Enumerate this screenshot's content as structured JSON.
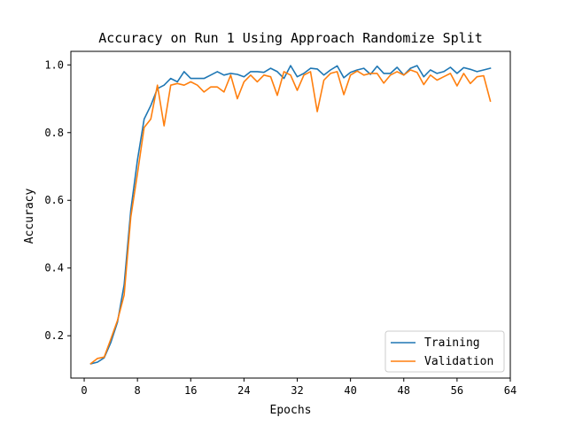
{
  "chart_data": {
    "type": "line",
    "title": "Accuracy on Run 1 Using Approach Randomize Split",
    "xlabel": "Epochs",
    "ylabel": "Accuracy",
    "xlim": [
      -2,
      64
    ],
    "ylim": [
      0.075,
      1.04
    ],
    "xticks": [
      0,
      8,
      16,
      24,
      32,
      40,
      48,
      56,
      64
    ],
    "yticks": [
      0.2,
      0.4,
      0.6,
      0.8,
      1.0
    ],
    "xtick_labels": [
      "0",
      "8",
      "16",
      "24",
      "32",
      "40",
      "48",
      "56",
      "64"
    ],
    "ytick_labels": [
      "0.2",
      "0.4",
      "0.6",
      "0.8",
      "1.0"
    ],
    "grid": false,
    "legend_position": "lower-right",
    "x": [
      1,
      2,
      3,
      4,
      5,
      6,
      7,
      8,
      9,
      10,
      11,
      12,
      13,
      14,
      15,
      16,
      17,
      18,
      19,
      20,
      21,
      22,
      23,
      24,
      25,
      26,
      27,
      28,
      29,
      30,
      31,
      32,
      33,
      34,
      35,
      36,
      37,
      38,
      39,
      40,
      41,
      42,
      43,
      44,
      45,
      46,
      47,
      48,
      49,
      50,
      51,
      52,
      53,
      54,
      55,
      56,
      57,
      58,
      59,
      60,
      61
    ],
    "series": [
      {
        "name": "Training",
        "color": "#1f77b4",
        "values": [
          0.117,
          0.122,
          0.135,
          0.18,
          0.24,
          0.35,
          0.57,
          0.72,
          0.84,
          0.88,
          0.93,
          0.94,
          0.96,
          0.95,
          0.98,
          0.96,
          0.96,
          0.96,
          0.97,
          0.98,
          0.97,
          0.975,
          0.972,
          0.965,
          0.98,
          0.98,
          0.978,
          0.99,
          0.98,
          0.96,
          0.998,
          0.965,
          0.975,
          0.99,
          0.988,
          0.97,
          0.985,
          0.997,
          0.962,
          0.978,
          0.985,
          0.99,
          0.972,
          0.996,
          0.975,
          0.975,
          0.993,
          0.97,
          0.99,
          0.998,
          0.965,
          0.985,
          0.975,
          0.98,
          0.993,
          0.975,
          0.992,
          0.987,
          0.98,
          0.985,
          0.99
        ]
      },
      {
        "name": "Validation",
        "color": "#ff7f0e",
        "values": [
          0.118,
          0.133,
          0.137,
          0.19,
          0.245,
          0.32,
          0.55,
          0.68,
          0.815,
          0.84,
          0.94,
          0.82,
          0.94,
          0.945,
          0.94,
          0.95,
          0.94,
          0.92,
          0.935,
          0.935,
          0.92,
          0.97,
          0.9,
          0.95,
          0.97,
          0.95,
          0.97,
          0.965,
          0.91,
          0.98,
          0.97,
          0.925,
          0.97,
          0.98,
          0.862,
          0.955,
          0.975,
          0.98,
          0.912,
          0.97,
          0.982,
          0.97,
          0.975,
          0.975,
          0.946,
          0.97,
          0.98,
          0.97,
          0.985,
          0.978,
          0.942,
          0.97,
          0.955,
          0.965,
          0.975,
          0.938,
          0.975,
          0.945,
          0.965,
          0.968,
          0.893
        ]
      }
    ]
  }
}
